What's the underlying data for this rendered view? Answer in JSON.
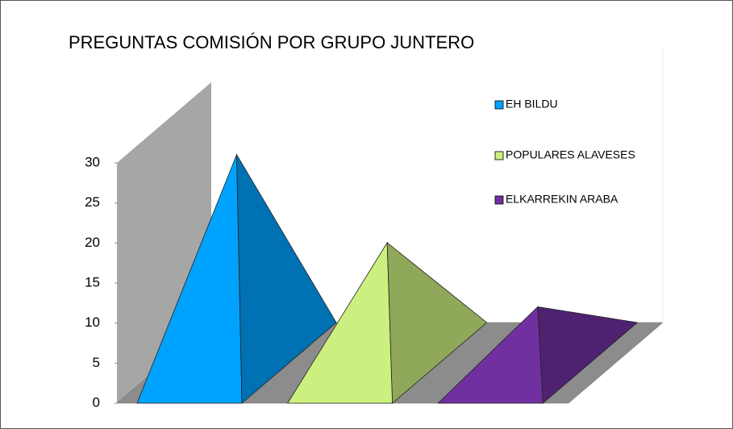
{
  "chart_data": {
    "type": "pyramid3d",
    "title": "PREGUNTAS COMISIÓN POR GRUPO JUNTERO",
    "categories": [
      null
    ],
    "series": [
      {
        "name": "EH BILDU",
        "color": "#00a2ff",
        "values": [
          26
        ]
      },
      {
        "name": "POPULARES ALAVESES",
        "color": "#ccf07f",
        "values": [
          15
        ]
      },
      {
        "name": "ELKARREKIN ARABA",
        "color": "#7030a0",
        "values": [
          7
        ]
      }
    ],
    "ylim": [
      0,
      30
    ],
    "yticks": [
      0,
      5,
      10,
      15,
      20,
      25,
      30
    ],
    "legend": "right"
  }
}
